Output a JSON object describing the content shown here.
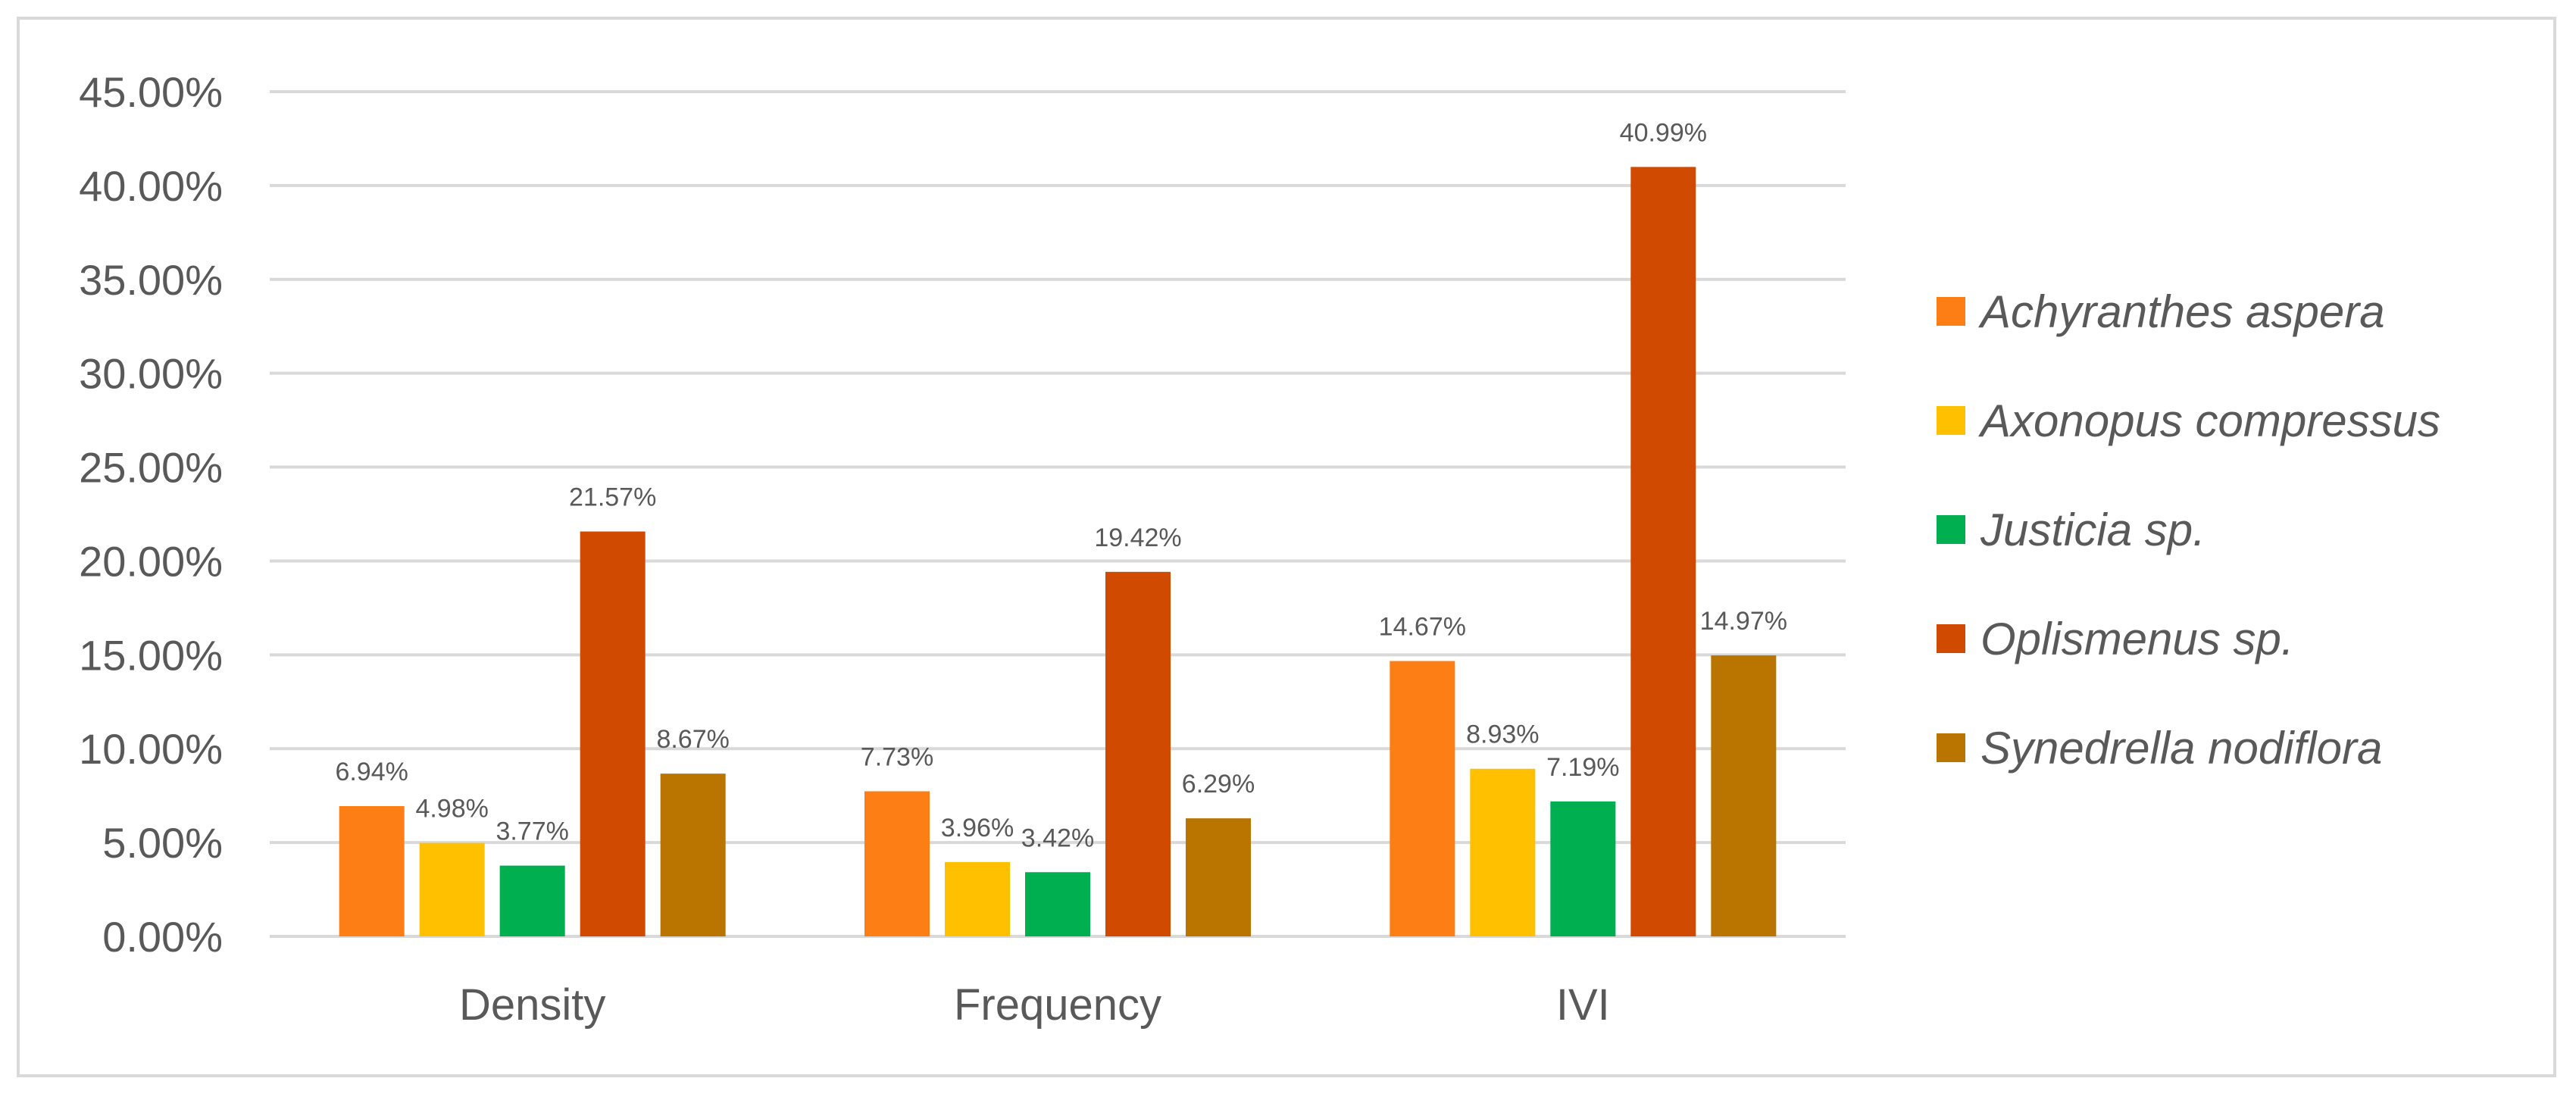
{
  "chart_data": {
    "type": "bar",
    "categories": [
      "Density",
      "Frequency",
      "IVI"
    ],
    "series": [
      {
        "name": "Achyranthes aspera",
        "color": "#fd7e14",
        "values": [
          6.94,
          7.73,
          14.67
        ],
        "labels": [
          "6.94%",
          "7.73%",
          "14.67%"
        ]
      },
      {
        "name": "Axonopus compressus",
        "color": "#ffc000",
        "values": [
          4.98,
          3.96,
          8.93
        ],
        "labels": [
          "4.98%",
          "3.96%",
          "8.93%"
        ]
      },
      {
        "name": "Justicia sp.",
        "color": "#00b050",
        "values": [
          3.77,
          3.42,
          7.19
        ],
        "labels": [
          "3.77%",
          "3.42%",
          "7.19%"
        ]
      },
      {
        "name": "Oplismenus sp.",
        "color": "#d04a02",
        "values": [
          21.57,
          19.42,
          40.99
        ],
        "labels": [
          "21.57%",
          "19.42%",
          "40.99%"
        ]
      },
      {
        "name": "Synedrella nodiflora",
        "color": "#b97500",
        "values": [
          8.67,
          6.29,
          14.97
        ],
        "labels": [
          "8.67%",
          "6.29%",
          "14.97%"
        ]
      }
    ],
    "ylim": [
      0,
      45
    ],
    "yticks": [
      0,
      5,
      10,
      15,
      20,
      25,
      30,
      35,
      40,
      45
    ],
    "ytick_labels": [
      "0.00%",
      "5.00%",
      "10.00%",
      "15.00%",
      "20.00%",
      "25.00%",
      "30.00%",
      "35.00%",
      "40.00%",
      "45.00%"
    ],
    "grid": true,
    "legend_position": "right",
    "title": "",
    "xlabel": "",
    "ylabel": ""
  }
}
